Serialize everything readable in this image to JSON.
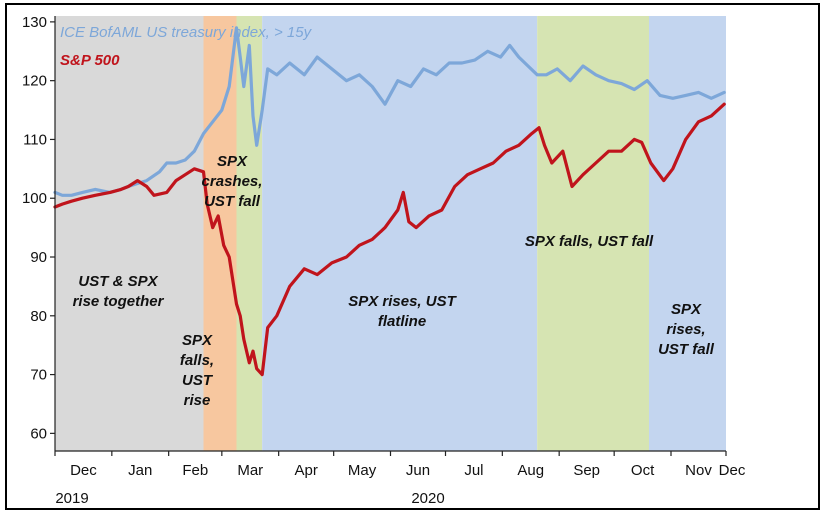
{
  "chart_data": {
    "type": "line",
    "title": "",
    "xlabel": "",
    "ylabel": "",
    "ylim": [
      57,
      131
    ],
    "yticks": [
      60,
      70,
      80,
      90,
      100,
      110,
      120,
      130
    ],
    "grid": false,
    "legend_position": "top-left",
    "x_tick_labels": [
      "Dec",
      "Jan",
      "Feb",
      "Mar",
      "Apr",
      "May",
      "Jun",
      "Jul",
      "Aug",
      "Sep",
      "Oct",
      "Nov",
      "Dec"
    ],
    "x_tick_dates": [
      "2019-12-01",
      "2020-01-01",
      "2020-02-01",
      "2020-03-01",
      "2020-04-01",
      "2020-05-01",
      "2020-06-01",
      "2020-07-01",
      "2020-08-01",
      "2020-09-01",
      "2020-10-01",
      "2020-11-01",
      "2020-12-01"
    ],
    "year_labels": [
      {
        "text": "2019",
        "date": "2019-12-15"
      },
      {
        "text": "2020",
        "date": "2020-06-16"
      }
    ],
    "shaded_periods": [
      {
        "start": "2019-12-01",
        "end": "2020-02-20",
        "color": "#d9d9d9",
        "label": "UST & SPX rise together"
      },
      {
        "start": "2020-02-20",
        "end": "2020-03-09",
        "color": "#f7c79f",
        "label": "SPX falls, UST rise"
      },
      {
        "start": "2020-03-09",
        "end": "2020-03-23",
        "color": "#d6e4b2",
        "label": "SPX crashes, UST fall"
      },
      {
        "start": "2020-03-23",
        "end": "2020-08-20",
        "color": "#c3d5ef",
        "label": "SPX rises, UST flatline"
      },
      {
        "start": "2020-08-20",
        "end": "2020-10-20",
        "color": "#d6e4b2",
        "label": "SPX falls, UST fall"
      },
      {
        "start": "2020-10-20",
        "end": "2020-12-01",
        "color": "#c3d5ef",
        "label": "SPX rises, UST fall"
      }
    ],
    "series": [
      {
        "name": "ICE BofAML US treasury index, > 15y",
        "color": "#7da7d9",
        "x": [
          "2019-12-01",
          "2019-12-05",
          "2019-12-10",
          "2019-12-16",
          "2019-12-23",
          "2019-12-31",
          "2020-01-06",
          "2020-01-10",
          "2020-01-15",
          "2020-01-20",
          "2020-01-27",
          "2020-01-31",
          "2020-02-05",
          "2020-02-10",
          "2020-02-15",
          "2020-02-20",
          "2020-02-25",
          "2020-03-01",
          "2020-03-05",
          "2020-03-09",
          "2020-03-11",
          "2020-03-13",
          "2020-03-16",
          "2020-03-18",
          "2020-03-20",
          "2020-03-23",
          "2020-03-26",
          "2020-03-31",
          "2020-04-07",
          "2020-04-15",
          "2020-04-22",
          "2020-04-30",
          "2020-05-08",
          "2020-05-15",
          "2020-05-22",
          "2020-05-29",
          "2020-06-05",
          "2020-06-12",
          "2020-06-19",
          "2020-06-26",
          "2020-07-03",
          "2020-07-10",
          "2020-07-17",
          "2020-07-24",
          "2020-07-31",
          "2020-08-05",
          "2020-08-10",
          "2020-08-15",
          "2020-08-20",
          "2020-08-25",
          "2020-08-31",
          "2020-09-07",
          "2020-09-14",
          "2020-09-21",
          "2020-09-28",
          "2020-10-05",
          "2020-10-12",
          "2020-10-19",
          "2020-10-26",
          "2020-11-02",
          "2020-11-09",
          "2020-11-16",
          "2020-11-23",
          "2020-11-30"
        ],
        "values": [
          101,
          100.5,
          100.5,
          101,
          101.5,
          101,
          101.5,
          102,
          102.5,
          103,
          104.5,
          106,
          106,
          106.5,
          108,
          111,
          113,
          115,
          119,
          129,
          124,
          119,
          126,
          114,
          109,
          115,
          122,
          121,
          123,
          121,
          124,
          122,
          120,
          121,
          119,
          116,
          120,
          119,
          122,
          121,
          123,
          123,
          123.5,
          125,
          124,
          126,
          124,
          122.5,
          121,
          121,
          122,
          120,
          122.5,
          121,
          120,
          119.5,
          118.5,
          120,
          117.5,
          117,
          117.5,
          118,
          117,
          118
        ]
      },
      {
        "name": "S&P 500",
        "color": "#c0141c",
        "x": [
          "2019-12-01",
          "2019-12-05",
          "2019-12-10",
          "2019-12-16",
          "2019-12-23",
          "2019-12-31",
          "2020-01-06",
          "2020-01-10",
          "2020-01-15",
          "2020-01-20",
          "2020-01-24",
          "2020-01-31",
          "2020-02-05",
          "2020-02-10",
          "2020-02-15",
          "2020-02-20",
          "2020-02-22",
          "2020-02-25",
          "2020-02-28",
          "2020-03-02",
          "2020-03-05",
          "2020-03-09",
          "2020-03-11",
          "2020-03-13",
          "2020-03-16",
          "2020-03-18",
          "2020-03-20",
          "2020-03-23",
          "2020-03-26",
          "2020-03-31",
          "2020-04-07",
          "2020-04-15",
          "2020-04-22",
          "2020-04-30",
          "2020-05-08",
          "2020-05-15",
          "2020-05-22",
          "2020-05-29",
          "2020-06-05",
          "2020-06-08",
          "2020-06-11",
          "2020-06-15",
          "2020-06-22",
          "2020-06-29",
          "2020-07-06",
          "2020-07-13",
          "2020-07-20",
          "2020-07-27",
          "2020-08-03",
          "2020-08-10",
          "2020-08-17",
          "2020-08-21",
          "2020-08-24",
          "2020-08-28",
          "2020-09-03",
          "2020-09-08",
          "2020-09-14",
          "2020-09-21",
          "2020-09-28",
          "2020-10-05",
          "2020-10-12",
          "2020-10-16",
          "2020-10-21",
          "2020-10-28",
          "2020-11-02",
          "2020-11-09",
          "2020-11-16",
          "2020-11-23",
          "2020-11-30"
        ],
        "values": [
          98.5,
          99,
          99.5,
          100,
          100.5,
          101,
          101.5,
          102,
          103,
          102,
          100.5,
          101,
          103,
          104,
          105,
          104.5,
          99,
          95,
          97,
          92,
          90,
          82,
          80,
          76,
          72,
          74,
          71,
          70,
          78,
          80,
          85,
          88,
          87,
          89,
          90,
          92,
          93,
          95,
          98,
          101,
          96,
          95,
          97,
          98,
          102,
          104,
          105,
          106,
          108,
          109,
          111,
          112,
          109,
          106,
          108,
          102,
          104,
          106,
          108,
          108,
          110,
          109.5,
          106,
          103,
          105,
          110,
          113,
          114,
          116
        ]
      }
    ]
  }
}
